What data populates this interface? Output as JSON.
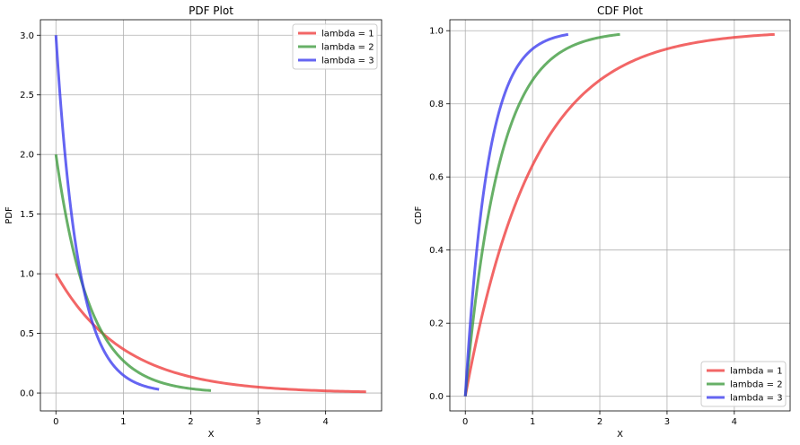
{
  "chart_data": [
    {
      "type": "line",
      "title": "PDF Plot",
      "xlabel": "X",
      "ylabel": "PDF",
      "xlim": [
        -0.23,
        4.83
      ],
      "ylim": [
        -0.15,
        3.13
      ],
      "xticks": [
        0,
        1,
        2,
        3,
        4
      ],
      "xtick_labels": [
        "0",
        "1",
        "2",
        "3",
        "4"
      ],
      "yticks": [
        0.0,
        0.5,
        1.0,
        1.5,
        2.0,
        2.5,
        3.0
      ],
      "ytick_labels": [
        "0.0",
        "0.5",
        "1.0",
        "1.5",
        "2.0",
        "2.5",
        "3.0"
      ],
      "grid": true,
      "legend_position": "top-right",
      "series": [
        {
          "name": "lambda = 1",
          "color": "#ee3b3b",
          "lambda": 1,
          "x_end": 4.6,
          "kind": "pdf"
        },
        {
          "name": "lambda = 2",
          "color": "#3c9a3c",
          "lambda": 2,
          "x_end": 2.3,
          "kind": "pdf"
        },
        {
          "name": "lambda = 3",
          "color": "#3a3aee",
          "lambda": 3,
          "x_end": 1.53,
          "kind": "pdf"
        }
      ]
    },
    {
      "type": "line",
      "title": "CDF Plot",
      "xlabel": "X",
      "ylabel": "CDF",
      "xlim": [
        -0.23,
        4.83
      ],
      "ylim": [
        -0.04,
        1.03
      ],
      "xticks": [
        0,
        1,
        2,
        3,
        4
      ],
      "xtick_labels": [
        "0",
        "1",
        "2",
        "3",
        "4"
      ],
      "yticks": [
        0.0,
        0.2,
        0.4,
        0.6,
        0.8,
        1.0
      ],
      "ytick_labels": [
        "0.0",
        "0.2",
        "0.4",
        "0.6",
        "0.8",
        "1.0"
      ],
      "grid": true,
      "legend_position": "bottom-right",
      "series": [
        {
          "name": "lambda = 1",
          "color": "#ee3b3b",
          "lambda": 1,
          "x_end": 4.6,
          "kind": "cdf"
        },
        {
          "name": "lambda = 2",
          "color": "#3c9a3c",
          "lambda": 2,
          "x_end": 2.3,
          "kind": "cdf"
        },
        {
          "name": "lambda = 3",
          "color": "#3a3aee",
          "lambda": 3,
          "x_end": 1.53,
          "kind": "cdf"
        }
      ]
    }
  ]
}
